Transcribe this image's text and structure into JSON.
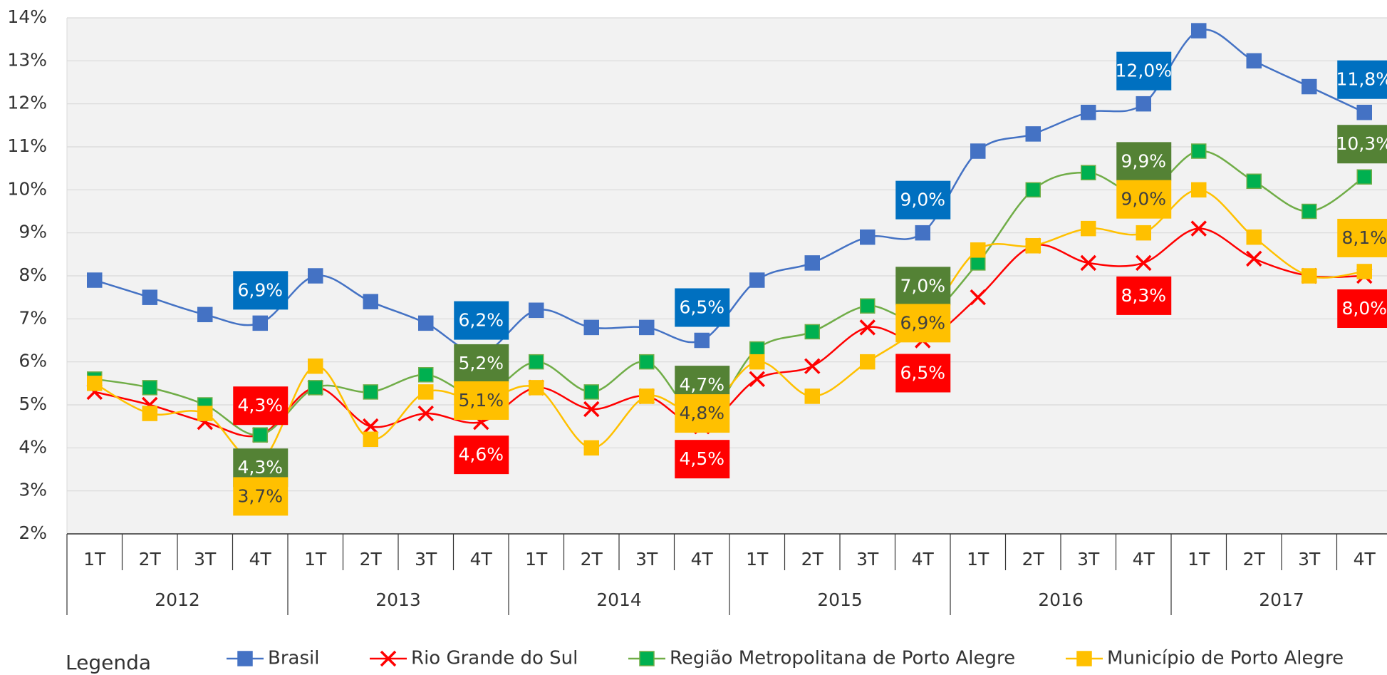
{
  "chart_data": {
    "type": "line",
    "categories": [
      "1T",
      "2T",
      "3T",
      "4T",
      "1T",
      "2T",
      "3T",
      "4T",
      "1T",
      "2T",
      "3T",
      "4T",
      "1T",
      "2T",
      "3T",
      "4T",
      "1T",
      "2T",
      "3T",
      "4T",
      "1T",
      "2T",
      "3T",
      "4T"
    ],
    "years": [
      "2012",
      "2013",
      "2014",
      "2015",
      "2016",
      "2017"
    ],
    "ylim": [
      2,
      14
    ],
    "yticks": [
      {
        "value": 2,
        "label": "2%"
      },
      {
        "value": 3,
        "label": "3%"
      },
      {
        "value": 4,
        "label": "4%"
      },
      {
        "value": 5,
        "label": "5%"
      },
      {
        "value": 6,
        "label": "6%"
      },
      {
        "value": 7,
        "label": "7%"
      },
      {
        "value": 8,
        "label": "8%"
      },
      {
        "value": 9,
        "label": "9%"
      },
      {
        "value": 10,
        "label": "10%"
      },
      {
        "value": 11,
        "label": "11%"
      },
      {
        "value": 12,
        "label": "12%"
      },
      {
        "value": 13,
        "label": "13%"
      },
      {
        "value": 14,
        "label": "14%"
      }
    ],
    "grid": true,
    "legend_title": "Legenda",
    "legend": "bottom",
    "series": [
      {
        "name": "Brasil",
        "color": "#4472c4",
        "label_color": "#0070c0",
        "marker": "square",
        "values": [
          7.9,
          7.5,
          7.1,
          6.9,
          8.0,
          7.4,
          6.9,
          6.2,
          7.2,
          6.8,
          6.8,
          6.5,
          7.9,
          8.3,
          8.9,
          9.0,
          10.9,
          11.3,
          11.8,
          12.0,
          13.7,
          13.0,
          12.4,
          11.8
        ],
        "value_labels": [
          null,
          null,
          null,
          "6,9%",
          null,
          null,
          null,
          "6,2%",
          null,
          null,
          null,
          "6,5%",
          null,
          null,
          null,
          "9,0%",
          null,
          null,
          null,
          "12,0%",
          null,
          null,
          null,
          "11,8%"
        ]
      },
      {
        "name": "Rio Grande do Sul",
        "color": "#ff0000",
        "label_color": "#ff0000",
        "marker": "cross",
        "values": [
          5.3,
          5.0,
          4.6,
          4.3,
          5.4,
          4.5,
          4.8,
          4.6,
          5.4,
          4.9,
          5.2,
          4.5,
          5.6,
          5.9,
          6.8,
          6.5,
          7.5,
          8.7,
          8.3,
          8.3,
          9.1,
          8.4,
          8.0,
          8.0
        ],
        "value_labels": [
          null,
          null,
          null,
          "4,3%",
          null,
          null,
          null,
          "4,6%",
          null,
          null,
          null,
          "4,5%",
          null,
          null,
          null,
          "6,5%",
          null,
          null,
          null,
          "8,3%",
          null,
          null,
          null,
          "8,0%"
        ]
      },
      {
        "name": "Região Metropolitana de Porto Alegre",
        "color": "#70ad47",
        "marker_color": "#00b050",
        "label_color": "#548235",
        "marker": "square",
        "values": [
          5.6,
          5.4,
          5.0,
          4.3,
          5.4,
          5.3,
          5.7,
          5.2,
          6.0,
          5.3,
          6.0,
          4.7,
          6.3,
          6.7,
          7.3,
          7.0,
          8.3,
          10.0,
          10.4,
          9.9,
          10.9,
          10.2,
          9.5,
          10.3
        ],
        "value_labels": [
          null,
          null,
          null,
          "4,3%",
          null,
          null,
          null,
          "5,2%",
          null,
          null,
          null,
          "4,7%",
          null,
          null,
          null,
          "7,0%",
          null,
          null,
          null,
          "9,9%",
          null,
          null,
          null,
          "10,3%"
        ]
      },
      {
        "name": "Município de Porto Alegre",
        "color": "#ffc000",
        "label_color": "#ffc000",
        "marker": "square",
        "values": [
          5.5,
          4.8,
          4.8,
          3.7,
          5.9,
          4.2,
          5.3,
          5.1,
          5.4,
          4.0,
          5.2,
          4.8,
          6.0,
          5.2,
          6.0,
          6.9,
          8.6,
          8.7,
          9.1,
          9.0,
          10.0,
          8.9,
          8.0,
          8.1
        ],
        "value_labels": [
          null,
          null,
          null,
          "3,7%",
          null,
          null,
          null,
          "5,1%",
          null,
          null,
          null,
          "4,8%",
          null,
          null,
          null,
          "6,9%",
          null,
          null,
          null,
          "9,0%",
          null,
          null,
          null,
          "8,1%"
        ]
      }
    ]
  }
}
